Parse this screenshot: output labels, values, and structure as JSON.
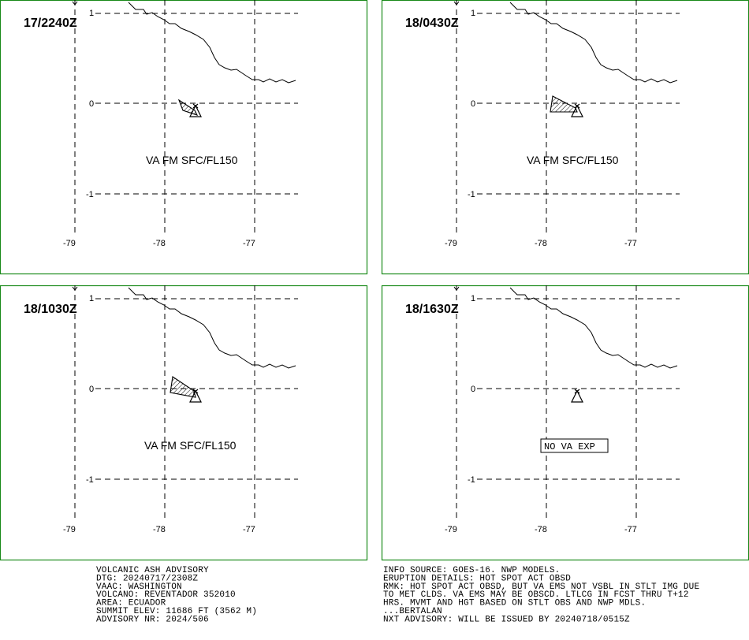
{
  "panels": [
    {
      "time": "17/2240Z",
      "label": "VA FM SFC/FL150",
      "boxed": false,
      "ash": true
    },
    {
      "time": "18/0430Z",
      "label": "VA FM SFC/FL150",
      "boxed": false,
      "ash": true
    },
    {
      "time": "18/1030Z",
      "label": "VA FM SFC/FL150",
      "boxed": false,
      "ash": true
    },
    {
      "time": "18/1630Z",
      "label": "NO VA EXP",
      "boxed": true,
      "ash": false
    }
  ],
  "axes": {
    "x_ticks": [
      "-79",
      "-78",
      "-77"
    ],
    "y_ticks": [
      "1",
      "0",
      "-1"
    ]
  },
  "advisory_left": [
    "VOLCANIC ASH ADVISORY",
    "DTG: 20240717/2308Z",
    "VAAC: WASHINGTON",
    "VOLCANO: REVENTADOR 352010",
    "AREA: ECUADOR",
    "SUMMIT ELEV: 11686 FT (3562 M)",
    "ADVISORY NR: 2024/506"
  ],
  "advisory_right": [
    "INFO SOURCE: GOES-16. NWP MODELS.",
    "ERUPTION DETAILS: HOT SPOT ACT OBSD",
    "RMK: HOT SPOT ACT OBSD, BUT VA EMS NOT VSBL IN STLT IMG DUE",
    "TO MET CLDS. VA EMS MAY BE OBSCD. LTLCG IN FCST THRU T+12",
    "HRS. MVMT AND HGT BASED ON STLT OBS AND NWP MDLS.",
    "...BERTALAN",
    "NXT ADVISORY: WILL BE ISSUED BY 20240718/0515Z"
  ],
  "colors": {
    "frame": "#1a8a1a",
    "ink": "#000000"
  }
}
